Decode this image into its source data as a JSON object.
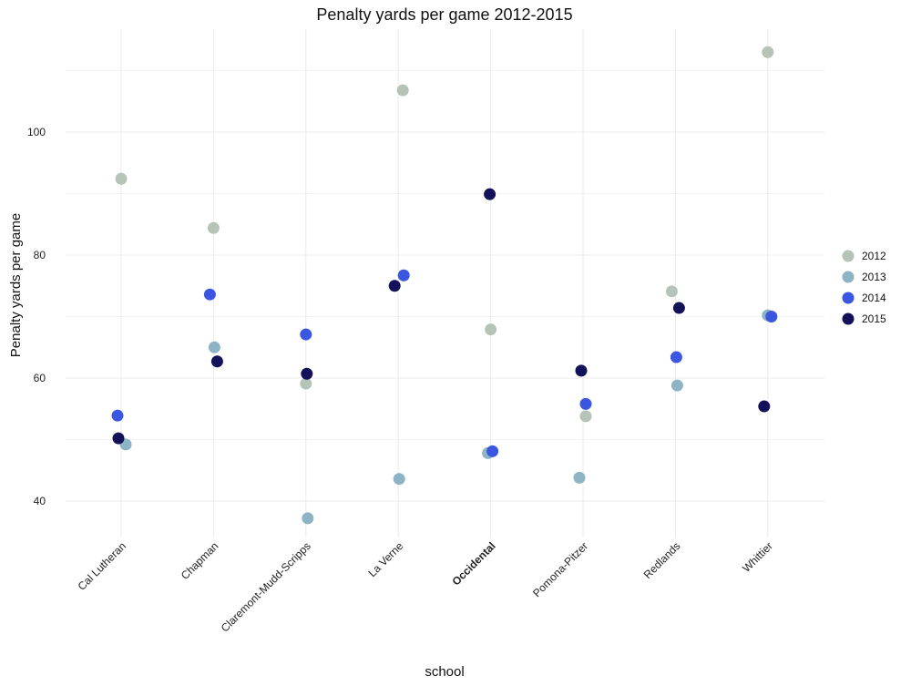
{
  "chart_data": {
    "type": "scatter",
    "title": "Penalty yards per game 2012-2015",
    "xlabel": "school",
    "ylabel": "Penalty yards per game",
    "categories": [
      "Cal Lutheran",
      "Chapman",
      "Claremont-Mudd-Scripps",
      "La Verne",
      "Occidental",
      "Pomona-Pitzer",
      "Redlands",
      "Whittier"
    ],
    "highlight_category": "Occidental",
    "yticks": [
      40,
      60,
      80,
      100
    ],
    "ylim": [
      32.1,
      116.5
    ],
    "grid": true,
    "legend_position": "right",
    "series": [
      {
        "name": "2012",
        "color": "#b6c3b8",
        "values": [
          92.4,
          84.4,
          59.1,
          106.8,
          67.9,
          53.8,
          74.1,
          113.0
        ]
      },
      {
        "name": "2013",
        "color": "#8db4c4",
        "values": [
          49.2,
          65.0,
          37.2,
          43.6,
          47.8,
          43.8,
          58.8,
          70.2
        ]
      },
      {
        "name": "2014",
        "color": "#3b56e0",
        "values": [
          53.9,
          73.6,
          67.1,
          76.7,
          48.1,
          55.8,
          63.4,
          70.0
        ]
      },
      {
        "name": "2015",
        "color": "#13115a",
        "values": [
          50.2,
          62.7,
          60.7,
          75.0,
          89.9,
          61.2,
          71.4,
          55.4
        ]
      }
    ],
    "jitter": [
      [
        0,
        0,
        0,
        5,
        0,
        3,
        -4,
        0
      ],
      [
        5,
        1,
        2,
        1,
        -3,
        -4,
        2,
        0
      ],
      [
        -4,
        -4,
        0,
        6,
        2,
        3,
        1,
        4
      ],
      [
        -3,
        4,
        1,
        -4,
        -1,
        -2,
        4,
        -4
      ]
    ]
  }
}
